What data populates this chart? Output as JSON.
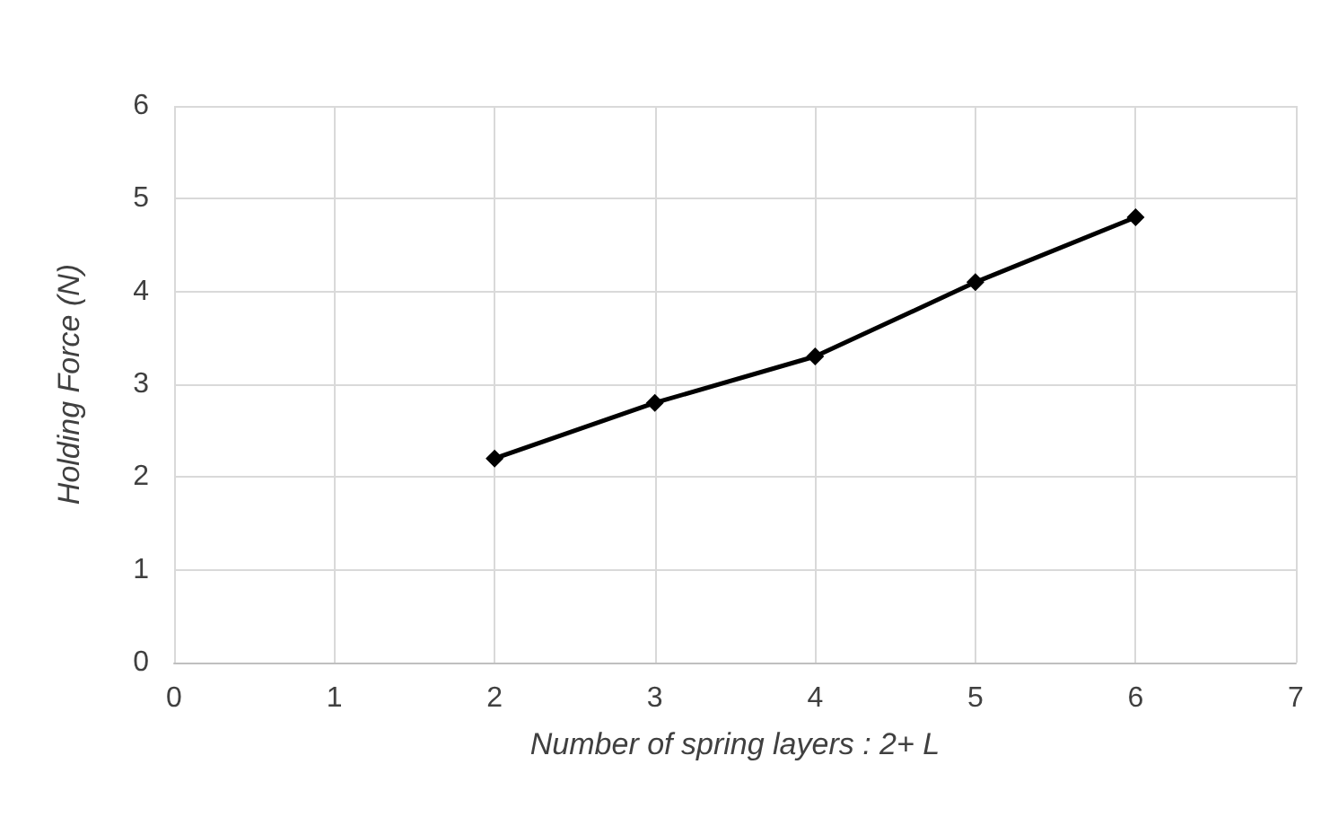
{
  "chart_data": {
    "type": "line",
    "xlabel": "Number of spring layers : 2+ L",
    "ylabel": "Holding Force (N)",
    "x": [
      2,
      3,
      4,
      5,
      6
    ],
    "series": [
      {
        "color": "#000000",
        "values": [
          2.2,
          2.8,
          3.3,
          4.1,
          4.8
        ]
      }
    ],
    "xlim": [
      0,
      7
    ],
    "xticks": [
      0,
      1,
      2,
      3,
      4,
      5,
      6,
      7
    ],
    "ylim": [
      0,
      6
    ],
    "yticks": [
      0,
      1,
      2,
      3,
      4,
      5,
      6
    ],
    "grid": true,
    "marker": "diamond",
    "line_style": "solid"
  }
}
